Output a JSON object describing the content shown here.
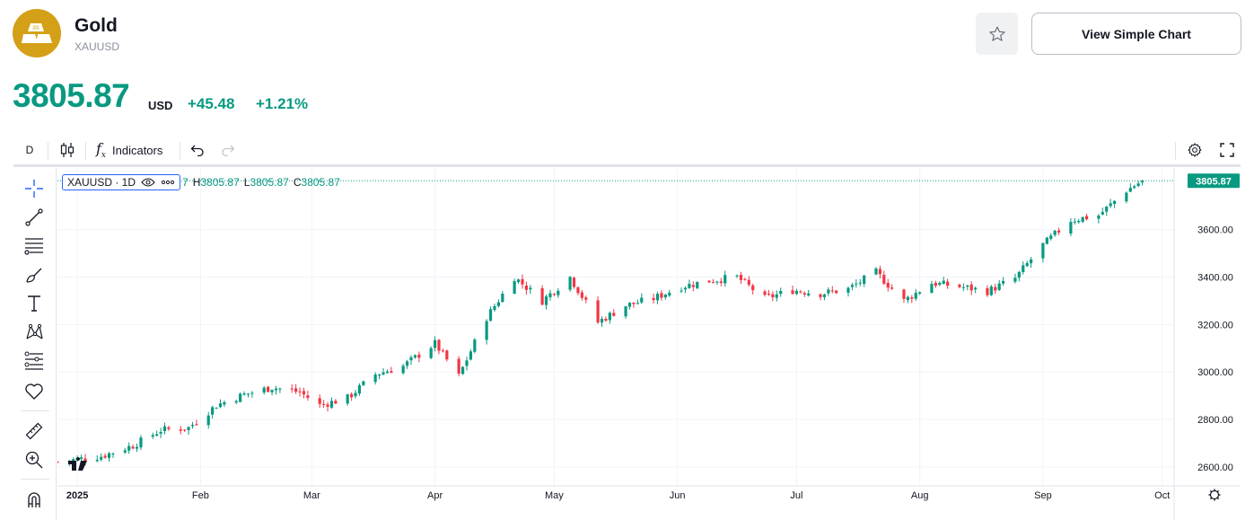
{
  "asset": {
    "name": "Gold",
    "ticker": "XAUUSD",
    "price": "3805.87",
    "currency": "USD",
    "change": "+45.48",
    "change_pct": "+1.21%"
  },
  "actions": {
    "view_simple_chart": "View Simple Chart"
  },
  "toolbar": {
    "interval": "D",
    "indicators": "Indicators"
  },
  "legend": {
    "symbol": "XAUUSD · 1D",
    "open_tail": "7",
    "h_label": "H",
    "h_value": "3805.87",
    "l_label": "L",
    "l_value": "3805.87",
    "c_label": "C",
    "c_value": "3805.87"
  },
  "colors": {
    "up": "#089981",
    "down": "#f23645",
    "accent": "#2962ff",
    "logo": "#d4a017"
  },
  "chart_data": {
    "type": "candlestick",
    "title": "",
    "xlabel": "",
    "ylabel": "",
    "ylim": [
      2520,
      3860
    ],
    "y_ticks": [
      2600,
      2800,
      3000,
      3200,
      3400,
      3600
    ],
    "y_tick_labels": [
      "2600.00",
      "2800.00",
      "3000.00",
      "3200.00",
      "3400.00",
      "3600.00"
    ],
    "x_tick_labels": [
      "2025",
      "Feb",
      "Mar",
      "Apr",
      "May",
      "Jun",
      "Jul",
      "Aug",
      "Sep",
      "Oct"
    ],
    "x_tick_dates": [
      "2025-01-01",
      "2025-02-01",
      "2025-03-01",
      "2025-04-01",
      "2025-05-01",
      "2025-06-01",
      "2025-07-01",
      "2025-08-01",
      "2025-09-01",
      "2025-10-01"
    ],
    "x_range": [
      "2024-12-27",
      "2025-10-04"
    ],
    "last_price": 3805.87,
    "last_price_label": "3805.87",
    "grid": true,
    "close_series": [
      {
        "date": "2024-12-27",
        "close": 2621
      },
      {
        "date": "2025-01-07",
        "close": 2645
      },
      {
        "date": "2025-01-15",
        "close": 2690
      },
      {
        "date": "2025-01-22",
        "close": 2755
      },
      {
        "date": "2025-01-29",
        "close": 2765
      },
      {
        "date": "2025-02-05",
        "close": 2860
      },
      {
        "date": "2025-02-12",
        "close": 2905
      },
      {
        "date": "2025-02-19",
        "close": 2935
      },
      {
        "date": "2025-02-26",
        "close": 2915
      },
      {
        "date": "2025-03-03",
        "close": 2860
      },
      {
        "date": "2025-03-10",
        "close": 2890
      },
      {
        "date": "2025-03-17",
        "close": 2990
      },
      {
        "date": "2025-03-24",
        "close": 3025
      },
      {
        "date": "2025-04-01",
        "close": 3120
      },
      {
        "date": "2025-04-07",
        "close": 2982
      },
      {
        "date": "2025-04-14",
        "close": 3230
      },
      {
        "date": "2025-04-21",
        "close": 3400
      },
      {
        "date": "2025-04-28",
        "close": 3300
      },
      {
        "date": "2025-05-05",
        "close": 3400
      },
      {
        "date": "2025-05-12",
        "close": 3210
      },
      {
        "date": "2025-05-19",
        "close": 3280
      },
      {
        "date": "2025-05-26",
        "close": 3310
      },
      {
        "date": "2025-06-02",
        "close": 3360
      },
      {
        "date": "2025-06-09",
        "close": 3385
      },
      {
        "date": "2025-06-16",
        "close": 3400
      },
      {
        "date": "2025-06-23",
        "close": 3310
      },
      {
        "date": "2025-06-30",
        "close": 3345
      },
      {
        "date": "2025-07-07",
        "close": 3330
      },
      {
        "date": "2025-07-14",
        "close": 3350
      },
      {
        "date": "2025-07-21",
        "close": 3420
      },
      {
        "date": "2025-07-28",
        "close": 3300
      },
      {
        "date": "2025-08-04",
        "close": 3375
      },
      {
        "date": "2025-08-11",
        "close": 3360
      },
      {
        "date": "2025-08-18",
        "close": 3340
      },
      {
        "date": "2025-08-25",
        "close": 3395
      },
      {
        "date": "2025-09-01",
        "close": 3535
      },
      {
        "date": "2025-09-08",
        "close": 3640
      },
      {
        "date": "2025-09-15",
        "close": 3660
      },
      {
        "date": "2025-09-22",
        "close": 3765
      },
      {
        "date": "2025-09-26",
        "close": 3805.87
      }
    ]
  }
}
